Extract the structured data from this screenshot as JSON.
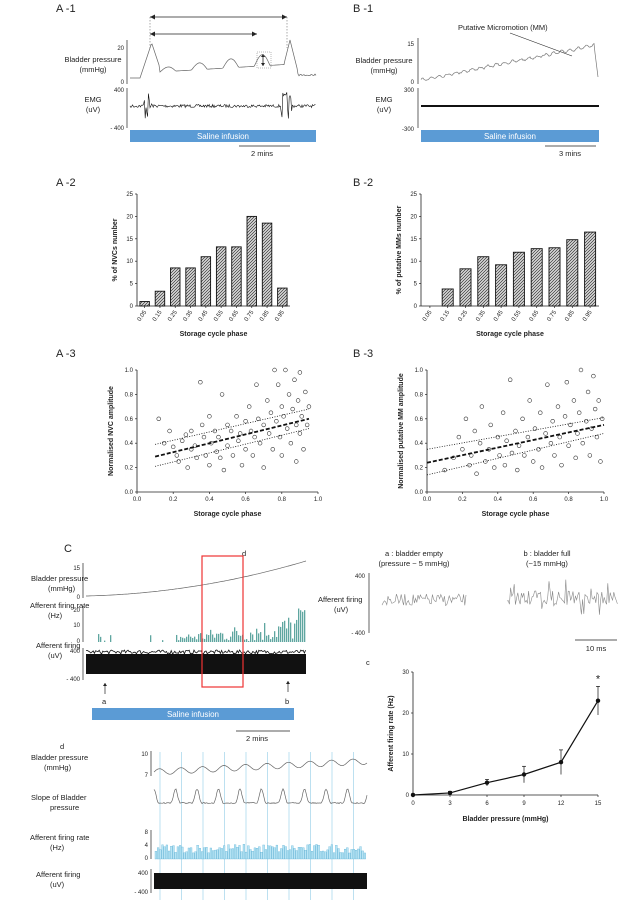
{
  "panels": {
    "a1": {
      "label": "A -1",
      "pressure_label": "Bladder pressure",
      "pressure_unit": "(mmHg)",
      "pressure_ticks": [
        "20",
        "0"
      ],
      "emg_label": "EMG",
      "emg_unit": "(uV)",
      "emg_ticks": [
        "400",
        "- 400"
      ],
      "infusion": "Saline infusion",
      "scale": "2 mins"
    },
    "b1": {
      "label": "B -1",
      "annotation": "Putative Micromotion (MM)",
      "pressure_label": "Bladder pressure",
      "pressure_unit": "(mmHg)",
      "pressure_ticks": [
        "15",
        "0"
      ],
      "emg_label": "EMG",
      "emg_unit": "(uV)",
      "emg_ticks": [
        "300",
        "-300"
      ],
      "infusion": "Saline infusion",
      "scale": "3 mins"
    },
    "a2": {
      "label": "A -2"
    },
    "b2": {
      "label": "B -2"
    },
    "a3": {
      "label": "A -3"
    },
    "b3": {
      "label": "B -3"
    },
    "c": {
      "label": "C",
      "d_marker": "d",
      "pressure_label": "Bladder pressure",
      "pressure_unit": "(mmHg)",
      "pressure_ticks": [
        "15",
        "0"
      ],
      "rate_label": "Afferent firing rate",
      "rate_unit": "(Hz)",
      "rate_ticks": [
        "20",
        "10",
        "0"
      ],
      "firing_label": "Afferent firing",
      "firing_unit": "(uV)",
      "firing_ticks": [
        "400",
        "- 400"
      ],
      "marker_a": "a",
      "marker_b": "b",
      "infusion": "Saline infusion",
      "scale": "2 mins"
    },
    "ab": {
      "a_title1": "a : bladder empty",
      "a_title2": "(pressure ~ 5 mmHg)",
      "b_title1": "b : bladder full",
      "b_title2": "(~15 mmHg)",
      "firing_label": "Afferent firing",
      "firing_unit": "(uV)",
      "ticks": [
        "400",
        "- 400"
      ],
      "scale": "10 ms"
    },
    "cc": {
      "label": "c"
    },
    "d": {
      "label": "d",
      "pressure_label": "Bladder pressure",
      "pressure_unit": "(mmHg)",
      "pressure_ticks": [
        "10",
        "7"
      ],
      "slope_label1": "Slope of Bladder",
      "slope_label2": "pressure",
      "rate_label": "Afferent firing rate",
      "rate_unit": "(Hz)",
      "rate_ticks": [
        "8",
        "4",
        "0"
      ],
      "firing_label": "Afferent firing",
      "firing_unit": "(uV)",
      "firing_ticks": [
        "400",
        "- 400"
      ]
    }
  },
  "chart_data": [
    {
      "id": "A2",
      "type": "bar",
      "categories": [
        "0.05",
        "0.15",
        "0.25",
        "0.35",
        "0.45",
        "0.55",
        "0.65",
        "0.75",
        "0.85",
        "0.95"
      ],
      "values": [
        1,
        3.3,
        8.5,
        8.5,
        11,
        13.2,
        13.2,
        20,
        18.5,
        4
      ],
      "ylabel": "% of NVCs number",
      "xlabel": "Storage cycle phase",
      "ylim": [
        0,
        25
      ],
      "yticks": [
        "0",
        "5",
        "10",
        "15",
        "20",
        "25"
      ]
    },
    {
      "id": "B2",
      "type": "bar",
      "categories": [
        "0.05",
        "0.15",
        "0.25",
        "0.35",
        "0.45",
        "0.55",
        "0.65",
        "0.75",
        "0.85",
        "0.95"
      ],
      "values": [
        0,
        3.8,
        8.3,
        11,
        9.2,
        12,
        12.8,
        13,
        14.8,
        16.5
      ],
      "ylabel": "% of putative MMs number",
      "xlabel": "Storage cycle phase",
      "ylim": [
        0,
        25
      ],
      "yticks": [
        "0",
        "5",
        "10",
        "15",
        "20",
        "25"
      ]
    },
    {
      "id": "A3",
      "type": "scatter",
      "ylabel": "Normalised NVC amplitude",
      "xlabel": "Storage cycle phase",
      "xlim": [
        0,
        1
      ],
      "ylim": [
        0,
        1
      ],
      "xticks": [
        "0.0",
        "0.2",
        "0.4",
        "0.6",
        "0.8",
        "1.0"
      ],
      "yticks": [
        "0.0",
        "0.2",
        "0.4",
        "0.6",
        "0.8",
        "1.0"
      ],
      "fit": [
        [
          0.1,
          0.29
        ],
        [
          0.95,
          0.6
        ]
      ],
      "ci_upper": [
        [
          0.1,
          0.39
        ],
        [
          0.95,
          0.68
        ]
      ],
      "ci_lower": [
        [
          0.1,
          0.21
        ],
        [
          0.95,
          0.52
        ]
      ],
      "points": [
        [
          0.12,
          0.6
        ],
        [
          0.15,
          0.4
        ],
        [
          0.18,
          0.5
        ],
        [
          0.2,
          0.37
        ],
        [
          0.22,
          0.3
        ],
        [
          0.23,
          0.25
        ],
        [
          0.25,
          0.42
        ],
        [
          0.27,
          0.47
        ],
        [
          0.28,
          0.2
        ],
        [
          0.3,
          0.5
        ],
        [
          0.3,
          0.35
        ],
        [
          0.32,
          0.38
        ],
        [
          0.33,
          0.28
        ],
        [
          0.35,
          0.9
        ],
        [
          0.36,
          0.55
        ],
        [
          0.37,
          0.45
        ],
        [
          0.38,
          0.3
        ],
        [
          0.4,
          0.22
        ],
        [
          0.4,
          0.62
        ],
        [
          0.41,
          0.4
        ],
        [
          0.43,
          0.5
        ],
        [
          0.44,
          0.33
        ],
        [
          0.45,
          0.45
        ],
        [
          0.46,
          0.28
        ],
        [
          0.47,
          0.8
        ],
        [
          0.48,
          0.18
        ],
        [
          0.5,
          0.55
        ],
        [
          0.5,
          0.38
        ],
        [
          0.52,
          0.5
        ],
        [
          0.53,
          0.3
        ],
        [
          0.55,
          0.62
        ],
        [
          0.56,
          0.42
        ],
        [
          0.57,
          0.48
        ],
        [
          0.58,
          0.22
        ],
        [
          0.6,
          0.58
        ],
        [
          0.6,
          0.35
        ],
        [
          0.62,
          0.7
        ],
        [
          0.63,
          0.5
        ],
        [
          0.64,
          0.3
        ],
        [
          0.65,
          0.45
        ],
        [
          0.66,
          0.88
        ],
        [
          0.67,
          0.6
        ],
        [
          0.68,
          0.4
        ],
        [
          0.7,
          0.55
        ],
        [
          0.7,
          0.2
        ],
        [
          0.72,
          0.75
        ],
        [
          0.73,
          0.48
        ],
        [
          0.74,
          0.65
        ],
        [
          0.75,
          0.35
        ],
        [
          0.76,
          1.0
        ],
        [
          0.77,
          0.58
        ],
        [
          0.78,
          0.88
        ],
        [
          0.79,
          0.45
        ],
        [
          0.8,
          0.7
        ],
        [
          0.8,
          0.3
        ],
        [
          0.81,
          0.62
        ],
        [
          0.82,
          1.0
        ],
        [
          0.83,
          0.52
        ],
        [
          0.84,
          0.8
        ],
        [
          0.85,
          0.4
        ],
        [
          0.86,
          0.68
        ],
        [
          0.87,
          0.92
        ],
        [
          0.88,
          0.55
        ],
        [
          0.88,
          0.25
        ],
        [
          0.89,
          0.75
        ],
        [
          0.9,
          0.48
        ],
        [
          0.9,
          0.98
        ],
        [
          0.91,
          0.62
        ],
        [
          0.92,
          0.35
        ],
        [
          0.93,
          0.82
        ],
        [
          0.94,
          0.55
        ],
        [
          0.95,
          0.7
        ]
      ]
    },
    {
      "id": "B3",
      "type": "scatter",
      "ylabel": "Normalised putative MM amplitude",
      "xlabel": "Storage cycle phase",
      "xlim": [
        0,
        1
      ],
      "ylim": [
        0,
        1
      ],
      "xticks": [
        "0.0",
        "0.2",
        "0.4",
        "0.6",
        "0.8",
        "1.0"
      ],
      "yticks": [
        "0.0",
        "0.2",
        "0.4",
        "0.6",
        "0.8",
        "1.0"
      ],
      "fit": [
        [
          0.0,
          0.24
        ],
        [
          1.0,
          0.55
        ]
      ],
      "ci_upper": [
        [
          0.0,
          0.35
        ],
        [
          1.0,
          0.61
        ]
      ],
      "ci_lower": [
        [
          0.0,
          0.14
        ],
        [
          1.0,
          0.48
        ]
      ],
      "points": [
        [
          0.1,
          0.18
        ],
        [
          0.15,
          0.28
        ],
        [
          0.18,
          0.45
        ],
        [
          0.2,
          0.35
        ],
        [
          0.22,
          0.6
        ],
        [
          0.24,
          0.22
        ],
        [
          0.25,
          0.3
        ],
        [
          0.27,
          0.5
        ],
        [
          0.28,
          0.15
        ],
        [
          0.3,
          0.4
        ],
        [
          0.31,
          0.7
        ],
        [
          0.33,
          0.25
        ],
        [
          0.35,
          0.35
        ],
        [
          0.36,
          0.55
        ],
        [
          0.38,
          0.2
        ],
        [
          0.4,
          0.45
        ],
        [
          0.41,
          0.3
        ],
        [
          0.43,
          0.65
        ],
        [
          0.44,
          0.22
        ],
        [
          0.45,
          0.42
        ],
        [
          0.47,
          0.92
        ],
        [
          0.48,
          0.32
        ],
        [
          0.5,
          0.5
        ],
        [
          0.51,
          0.18
        ],
        [
          0.52,
          0.38
        ],
        [
          0.54,
          0.6
        ],
        [
          0.55,
          0.3
        ],
        [
          0.57,
          0.45
        ],
        [
          0.58,
          0.75
        ],
        [
          0.6,
          0.25
        ],
        [
          0.61,
          0.52
        ],
        [
          0.63,
          0.35
        ],
        [
          0.64,
          0.65
        ],
        [
          0.65,
          0.2
        ],
        [
          0.67,
          0.48
        ],
        [
          0.68,
          0.88
        ],
        [
          0.7,
          0.4
        ],
        [
          0.71,
          0.58
        ],
        [
          0.72,
          0.3
        ],
        [
          0.74,
          0.7
        ],
        [
          0.75,
          0.45
        ],
        [
          0.76,
          0.22
        ],
        [
          0.78,
          0.62
        ],
        [
          0.79,
          0.9
        ],
        [
          0.8,
          0.38
        ],
        [
          0.81,
          0.55
        ],
        [
          0.83,
          0.75
        ],
        [
          0.84,
          0.28
        ],
        [
          0.85,
          0.48
        ],
        [
          0.86,
          0.65
        ],
        [
          0.87,
          1.0
        ],
        [
          0.88,
          0.4
        ],
        [
          0.9,
          0.58
        ],
        [
          0.91,
          0.82
        ],
        [
          0.92,
          0.3
        ],
        [
          0.93,
          0.52
        ],
        [
          0.94,
          0.95
        ],
        [
          0.95,
          0.68
        ],
        [
          0.96,
          0.45
        ],
        [
          0.97,
          0.75
        ],
        [
          0.98,
          0.25
        ],
        [
          0.99,
          0.6
        ]
      ]
    },
    {
      "id": "c",
      "type": "line",
      "x": [
        0,
        3,
        6,
        9,
        12,
        15
      ],
      "values": [
        0,
        0.5,
        3,
        5,
        8,
        23
      ],
      "errors": [
        0.3,
        0.4,
        0.8,
        2,
        3,
        3.5
      ],
      "ylabel": "Afferent firing rate (Hz)",
      "xlabel": "Bladder pressure (mmHg)",
      "xlim": [
        0,
        15
      ],
      "ylim": [
        0,
        30
      ],
      "xticks": [
        "0",
        "3",
        "6",
        "9",
        "12",
        "15"
      ],
      "yticks": [
        "0",
        "10",
        "20",
        "30"
      ],
      "annotation": "*"
    }
  ]
}
